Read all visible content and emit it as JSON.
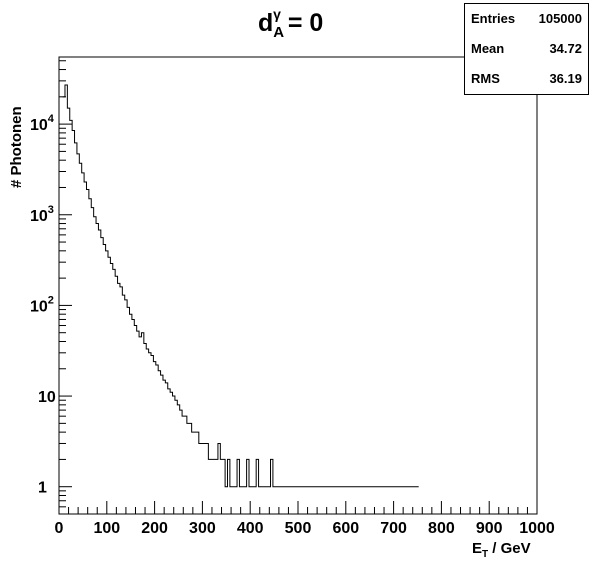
{
  "title": {
    "base": "d",
    "sub": "A",
    "sup": "γ",
    "rest": " = 0"
  },
  "stats": [
    {
      "label": "Entries",
      "value": "105000"
    },
    {
      "label": "Mean",
      "value": "34.72"
    },
    {
      "label": "RMS",
      "value": "36.19"
    }
  ],
  "axes": {
    "x": {
      "label_main": "E",
      "label_sub": "T",
      "label_rest": " / GeV"
    },
    "y": {
      "label": "# Photonen"
    }
  },
  "chart_data": {
    "type": "histogram",
    "title": "d_A^γ = 0",
    "xlabel": "E_T / GeV",
    "ylabel": "# Photonen",
    "xlim": [
      0,
      1000
    ],
    "ylim": [
      0.5,
      55000
    ],
    "yscale": "log",
    "bin_width": 5,
    "x_ticks": [
      "0",
      "100",
      "200",
      "300",
      "400",
      "500",
      "600",
      "700",
      "800",
      "900",
      "1000"
    ],
    "y_ticks": [
      {
        "value": 1,
        "base": "1",
        "exp": ""
      },
      {
        "value": 10,
        "base": "10",
        "exp": ""
      },
      {
        "value": 100,
        "base": "10",
        "exp": "2"
      },
      {
        "value": 1000,
        "base": "10",
        "exp": "3"
      },
      {
        "value": 10000,
        "base": "10",
        "exp": "4"
      }
    ],
    "bins": [
      [
        10,
        20000
      ],
      [
        15,
        27000
      ],
      [
        20,
        15000
      ],
      [
        25,
        11000
      ],
      [
        30,
        8500
      ],
      [
        35,
        6200
      ],
      [
        40,
        4700
      ],
      [
        45,
        3700
      ],
      [
        50,
        2900
      ],
      [
        55,
        2300
      ],
      [
        60,
        1900
      ],
      [
        65,
        1500
      ],
      [
        70,
        1200
      ],
      [
        75,
        950
      ],
      [
        80,
        800
      ],
      [
        85,
        680
      ],
      [
        90,
        560
      ],
      [
        95,
        470
      ],
      [
        100,
        400
      ],
      [
        105,
        340
      ],
      [
        110,
        290
      ],
      [
        115,
        250
      ],
      [
        120,
        210
      ],
      [
        125,
        175
      ],
      [
        130,
        160
      ],
      [
        135,
        130
      ],
      [
        140,
        115
      ],
      [
        145,
        95
      ],
      [
        150,
        80
      ],
      [
        155,
        70
      ],
      [
        160,
        60
      ],
      [
        165,
        52
      ],
      [
        170,
        45
      ],
      [
        175,
        50
      ],
      [
        180,
        38
      ],
      [
        185,
        33
      ],
      [
        190,
        30
      ],
      [
        195,
        28
      ],
      [
        200,
        24
      ],
      [
        205,
        22
      ],
      [
        210,
        19
      ],
      [
        215,
        17
      ],
      [
        220,
        15
      ],
      [
        225,
        14
      ],
      [
        230,
        12
      ],
      [
        235,
        11
      ],
      [
        240,
        10
      ],
      [
        245,
        9
      ],
      [
        250,
        8
      ],
      [
        255,
        7
      ],
      [
        260,
        6
      ],
      [
        265,
        6
      ],
      [
        270,
        5
      ],
      [
        275,
        5
      ],
      [
        280,
        4
      ],
      [
        285,
        4
      ],
      [
        290,
        4
      ],
      [
        295,
        3
      ],
      [
        300,
        3
      ],
      [
        305,
        3
      ],
      [
        310,
        3
      ],
      [
        315,
        2
      ],
      [
        320,
        2
      ],
      [
        325,
        2
      ],
      [
        330,
        2
      ],
      [
        335,
        3
      ],
      [
        340,
        2
      ],
      [
        345,
        2
      ],
      [
        350,
        1
      ],
      [
        355,
        2
      ],
      [
        360,
        1
      ],
      [
        365,
        1
      ],
      [
        370,
        1
      ],
      [
        375,
        2
      ],
      [
        380,
        1
      ],
      [
        385,
        1
      ],
      [
        390,
        1
      ],
      [
        395,
        2
      ],
      [
        400,
        1
      ],
      [
        405,
        1
      ],
      [
        410,
        1
      ],
      [
        415,
        2
      ],
      [
        420,
        1
      ],
      [
        425,
        1
      ],
      [
        430,
        1
      ],
      [
        435,
        1
      ],
      [
        440,
        1
      ],
      [
        445,
        2
      ],
      [
        450,
        1
      ],
      [
        455,
        1
      ],
      [
        460,
        1
      ],
      [
        465,
        1
      ],
      [
        470,
        1
      ],
      [
        475,
        1
      ],
      [
        480,
        1
      ],
      [
        485,
        1
      ],
      [
        490,
        1
      ],
      [
        495,
        1
      ],
      [
        500,
        1
      ],
      [
        505,
        1
      ],
      [
        510,
        1
      ],
      [
        515,
        1
      ],
      [
        520,
        1
      ],
      [
        525,
        1
      ],
      [
        530,
        1
      ],
      [
        535,
        1
      ],
      [
        540,
        1
      ],
      [
        545,
        1
      ],
      [
        550,
        1
      ],
      [
        555,
        1
      ],
      [
        560,
        1
      ],
      [
        565,
        1
      ],
      [
        570,
        1
      ],
      [
        575,
        1
      ],
      [
        580,
        1
      ],
      [
        585,
        1
      ],
      [
        590,
        1
      ],
      [
        595,
        1
      ],
      [
        600,
        1
      ],
      [
        605,
        1
      ],
      [
        610,
        1
      ],
      [
        615,
        1
      ],
      [
        620,
        1
      ],
      [
        625,
        1
      ],
      [
        630,
        1
      ],
      [
        635,
        1
      ],
      [
        640,
        1
      ],
      [
        645,
        1
      ],
      [
        650,
        1
      ],
      [
        655,
        1
      ],
      [
        660,
        1
      ],
      [
        665,
        1
      ],
      [
        670,
        1
      ],
      [
        675,
        1
      ],
      [
        680,
        1
      ],
      [
        685,
        1
      ],
      [
        690,
        1
      ],
      [
        695,
        1
      ],
      [
        700,
        1
      ],
      [
        705,
        1
      ],
      [
        710,
        1
      ],
      [
        715,
        1
      ],
      [
        720,
        1
      ],
      [
        725,
        1
      ],
      [
        730,
        1
      ],
      [
        735,
        1
      ],
      [
        740,
        1
      ],
      [
        745,
        1
      ],
      [
        750,
        1
      ]
    ]
  }
}
